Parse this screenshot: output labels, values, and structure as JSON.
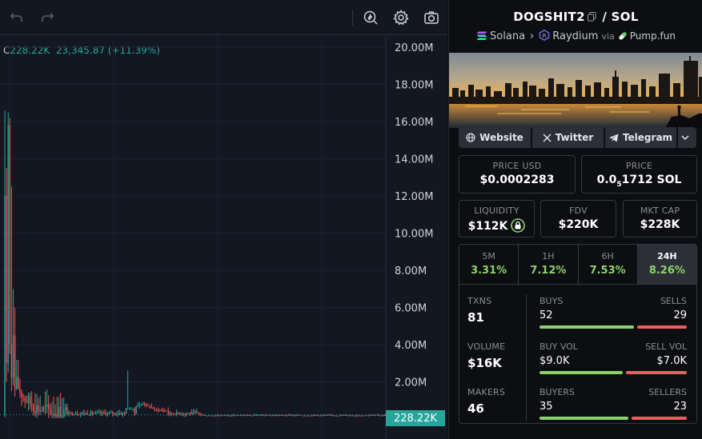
{
  "chart": {
    "legend_label": "C",
    "legend_close": "228.22K",
    "legend_change": "23,345.87 (+11.39%)",
    "y_ticks": [
      "20.00M",
      "18.00M",
      "16.00M",
      "14.00M",
      "12.00M",
      "10.00M",
      "8.00M",
      "6.00M",
      "4.00M",
      "2.00M"
    ],
    "price_tag": "228.22K",
    "colors": {
      "up": "#26a69a",
      "down": "#ef5350",
      "background": "#131722"
    }
  },
  "toolbar": {
    "icons": [
      "undo-icon",
      "redo-icon",
      "indicator-icon",
      "settings-icon",
      "camera-icon"
    ]
  },
  "pair": {
    "base": "DOGSHIT2",
    "separator": "/",
    "quote": "SOL",
    "chain": "Solana",
    "dex": "Raydium",
    "via": "via",
    "launchpad": "Pump.fun"
  },
  "links": {
    "website": "Website",
    "twitter": "Twitter",
    "telegram": "Telegram"
  },
  "prices": {
    "price_usd_label": "PRICE USD",
    "price_usd": "$0.0002283",
    "price_sol_label": "PRICE",
    "price_sol_prefix": "0.0",
    "price_sol_zeros": "5",
    "price_sol_suffix": "1712 SOL"
  },
  "metrics": {
    "liquidity_label": "LIQUIDITY",
    "liquidity": "$112K",
    "fdv_label": "FDV",
    "fdv": "$220K",
    "mktcap_label": "MKT CAP",
    "mktcap": "$228K"
  },
  "tabs": [
    {
      "label": "5M",
      "value": "3.31%"
    },
    {
      "label": "1H",
      "value": "7.12%"
    },
    {
      "label": "6H",
      "value": "7.53%"
    },
    {
      "label": "24H",
      "value": "8.26%"
    }
  ],
  "stats": {
    "txns_label": "TXNS",
    "txns": "81",
    "buys_label": "BUYS",
    "buys": "52",
    "sells_label": "SELLS",
    "sells": "29",
    "buys_share": 0.642,
    "volume_label": "VOLUME",
    "volume": "$16K",
    "buy_vol_label": "BUY VOL",
    "buy_vol": "$9.0K",
    "sell_vol_label": "SELL VOL",
    "sell_vol": "$7.0K",
    "buy_vol_share": 0.5625,
    "makers_label": "MAKERS",
    "makers": "46",
    "buyers_label": "BUYERS",
    "buyers": "35",
    "sellers_label": "SELLERS",
    "sellers": "23",
    "buyers_share": 0.603
  }
}
